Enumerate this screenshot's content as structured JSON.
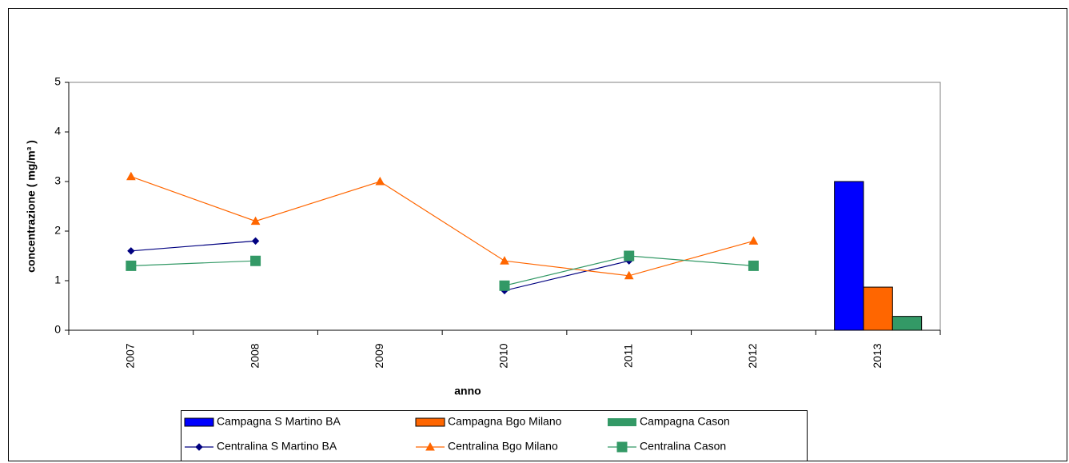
{
  "chart_data": {
    "type": "combo",
    "categories": [
      "2007",
      "2008",
      "2009",
      "2010",
      "2011",
      "2012",
      "2013"
    ],
    "xlabel": "anno",
    "ylabel": "concentrazione ( mg/m³ )",
    "ylim": [
      0,
      5
    ],
    "yticks": [
      0,
      1,
      2,
      3,
      4,
      5
    ],
    "series": [
      {
        "name": "Campagna S Martino BA",
        "type": "bar",
        "color": "#0000ff",
        "values": [
          null,
          null,
          null,
          null,
          null,
          null,
          3.0
        ]
      },
      {
        "name": "Campagna Bgo Milano",
        "type": "bar",
        "color": "#ff6600",
        "values": [
          null,
          null,
          null,
          null,
          null,
          null,
          0.87
        ]
      },
      {
        "name": "Campagna Cason",
        "type": "bar",
        "color": "#339966",
        "values": [
          null,
          null,
          null,
          null,
          null,
          null,
          0.28
        ]
      },
      {
        "name": "Centralina S Martino BA",
        "type": "line",
        "marker": "diamond",
        "color": "#000080",
        "values": [
          1.6,
          1.8,
          null,
          0.8,
          1.4,
          null,
          null
        ]
      },
      {
        "name": "Centralina Bgo Milano",
        "type": "line",
        "marker": "triangle",
        "color": "#ff6600",
        "values": [
          3.1,
          2.2,
          3.0,
          1.4,
          1.1,
          1.8,
          null
        ]
      },
      {
        "name": "Centralina Cason",
        "type": "line",
        "marker": "square",
        "color": "#339966",
        "values": [
          1.3,
          1.4,
          null,
          0.9,
          1.5,
          1.3,
          null
        ]
      }
    ]
  }
}
